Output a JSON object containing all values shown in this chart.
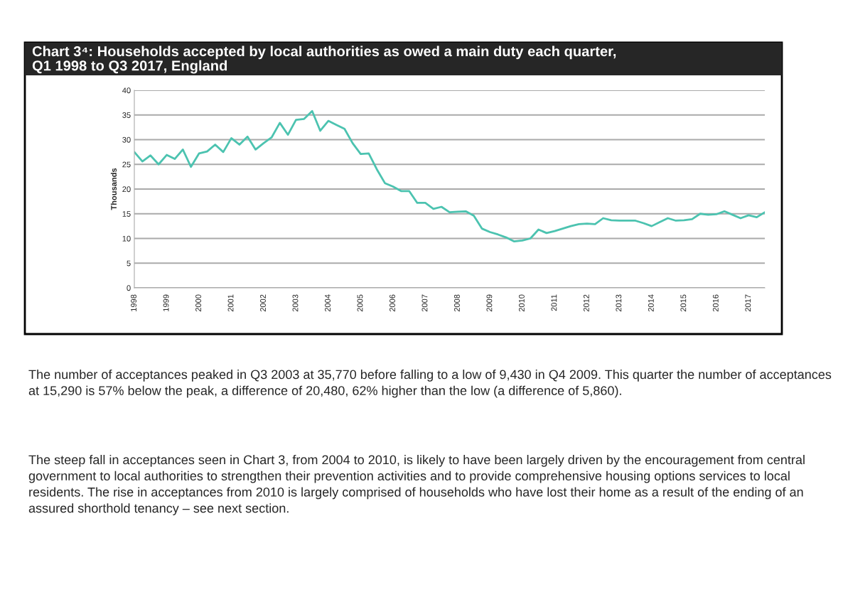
{
  "chart_data": {
    "type": "line",
    "title": "Chart 3⁴: Households accepted by local authorities as owed a main duty each quarter,\nQ1 1998 to Q3 2017, England",
    "ylabel": "Thousands",
    "categories": [
      "1998",
      null,
      null,
      null,
      "1999",
      null,
      null,
      null,
      "2000",
      null,
      null,
      null,
      "2001",
      null,
      null,
      null,
      "2002",
      null,
      null,
      null,
      "2003",
      null,
      null,
      null,
      "2004",
      null,
      null,
      null,
      "2005",
      null,
      null,
      null,
      "2006",
      null,
      null,
      null,
      "2007",
      null,
      null,
      null,
      "2008",
      null,
      null,
      null,
      "2009",
      null,
      null,
      null,
      "2010",
      null,
      null,
      null,
      "2011",
      null,
      null,
      null,
      "2012",
      null,
      null,
      null,
      "2013",
      null,
      null,
      null,
      "2014",
      null,
      null,
      null,
      "2015",
      null,
      null,
      null,
      "2016",
      null,
      null,
      null,
      "2017",
      null,
      null
    ],
    "series": [
      {
        "color": "#4cc3b0",
        "values": [
          27.5,
          25.6,
          26.8,
          25.0,
          26.9,
          26.1,
          28.0,
          24.5,
          27.2,
          27.6,
          29.0,
          27.5,
          30.3,
          29.0,
          30.6,
          28.0,
          29.3,
          30.5,
          33.4,
          31.0,
          34.0,
          34.2,
          35.8,
          31.8,
          33.8,
          33.0,
          32.2,
          29.3,
          27.1,
          27.2,
          24.0,
          21.2,
          20.5,
          19.6,
          19.6,
          17.2,
          17.2,
          16.0,
          16.4,
          15.3,
          15.4,
          15.5,
          14.6,
          12.0,
          11.3,
          10.8,
          10.2,
          9.4,
          9.6,
          10.0,
          11.8,
          11.1,
          11.5,
          12.0,
          12.5,
          12.9,
          13.0,
          12.9,
          14.1,
          13.7,
          13.6,
          13.6,
          13.6,
          13.1,
          12.5,
          13.3,
          14.1,
          13.6,
          13.7,
          13.9,
          15.0,
          14.8,
          14.9,
          15.5,
          14.8,
          14.1,
          14.7,
          14.3,
          15.3
        ]
      }
    ],
    "ylim": [
      0,
      40
    ],
    "yticks": [
      0,
      5,
      10,
      15,
      20,
      25,
      30,
      35,
      40
    ],
    "grid": "y",
    "line_style": "solid",
    "marker": "none",
    "annotations": [
      "The number of acceptances peaked in Q3 2003 at 35,770 before falling to a low of 9,430 in Q4 2009. This quarter the number of acceptances at 15,290 is 57% below the peak, a difference of 20,480, 62% higher than the low (a difference of 5,860).",
      "The steep fall in acceptances seen in Chart 3, from 2004 to 2010, is likely to have been largely driven by the encouragement from central government to local authorities to strengthen their prevention activities and to provide comprehensive housing options services to local residents. The rise in acceptances from 2010 is largely comprised of households who have lost their home as a result of the ending of an assured shorthold tenancy – see next section."
    ]
  }
}
